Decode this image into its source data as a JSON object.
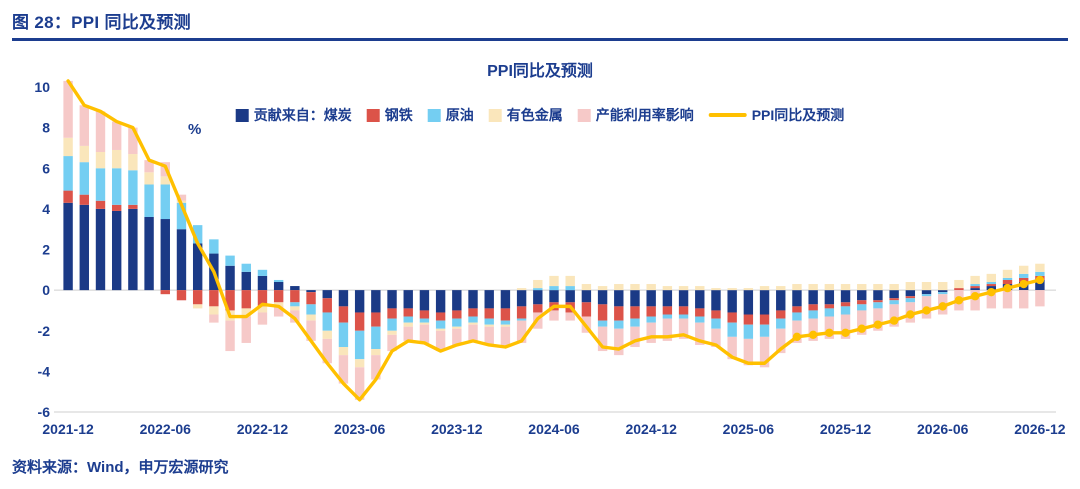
{
  "page": {
    "figure_title": "图 28：PPI 同比及预测",
    "source": "资料来源：Wind，申万宏源研究"
  },
  "chart_data": {
    "type": "bar",
    "subtype": "stacked-bar-with-line",
    "title": "PPI同比及预测",
    "unit_label": "%",
    "ylim": [
      -6,
      10
    ],
    "yticks": [
      10,
      8,
      6,
      4,
      2,
      0,
      -2,
      -4,
      -6
    ],
    "grid": "off",
    "legend_position": "top",
    "forecast_start_index": 45,
    "xtick_labels": [
      "2021-12",
      "2022-06",
      "2022-12",
      "2023-06",
      "2023-12",
      "2024-06",
      "2024-12",
      "2025-06",
      "2025-12",
      "2026-06",
      "2026-12"
    ],
    "x": [
      "2021-12",
      "2022-01",
      "2022-02",
      "2022-03",
      "2022-04",
      "2022-05",
      "2022-06",
      "2022-07",
      "2022-08",
      "2022-09",
      "2022-10",
      "2022-11",
      "2022-12",
      "2023-01",
      "2023-02",
      "2023-03",
      "2023-04",
      "2023-05",
      "2023-06",
      "2023-07",
      "2023-08",
      "2023-09",
      "2023-10",
      "2023-11",
      "2023-12",
      "2024-01",
      "2024-02",
      "2024-03",
      "2024-04",
      "2024-05",
      "2024-06",
      "2024-07",
      "2024-08",
      "2024-09",
      "2024-10",
      "2024-11",
      "2024-12",
      "2025-01",
      "2025-02",
      "2025-03",
      "2025-04",
      "2025-05",
      "2025-06",
      "2025-07",
      "2025-08",
      "2025-09",
      "2025-10",
      "2025-11",
      "2025-12",
      "2026-01",
      "2026-02",
      "2026-03",
      "2026-04",
      "2026-05",
      "2026-06",
      "2026-07",
      "2026-08",
      "2026-09",
      "2026-10",
      "2026-11",
      "2026-12"
    ],
    "series": [
      {
        "name": "贡献来自：煤炭",
        "type": "bar",
        "color": "#1b3a86",
        "values": [
          4.3,
          4.2,
          4.0,
          3.9,
          4.0,
          3.6,
          3.5,
          3.0,
          2.3,
          1.8,
          1.2,
          0.9,
          0.7,
          0.4,
          0.2,
          -0.1,
          -0.4,
          -0.8,
          -1.1,
          -1.1,
          -0.9,
          -0.9,
          -1.0,
          -1.1,
          -1.0,
          -0.9,
          -0.9,
          -0.9,
          -0.8,
          -0.7,
          -0.6,
          -0.6,
          -0.6,
          -0.7,
          -0.8,
          -0.8,
          -0.8,
          -0.8,
          -0.8,
          -0.9,
          -1.0,
          -1.1,
          -1.2,
          -1.2,
          -1.0,
          -0.8,
          -0.7,
          -0.7,
          -0.6,
          -0.5,
          -0.5,
          -0.4,
          -0.3,
          -0.2,
          -0.1,
          0.0,
          0.1,
          0.2,
          0.3,
          0.4,
          0.5
        ]
      },
      {
        "name": "钢铁",
        "type": "bar",
        "color": "#dc5349",
        "values": [
          0.6,
          0.5,
          0.4,
          0.3,
          0.2,
          0.0,
          -0.2,
          -0.5,
          -0.7,
          -0.8,
          -1.0,
          -0.9,
          -0.8,
          -0.6,
          -0.6,
          -0.6,
          -0.7,
          -0.8,
          -0.9,
          -0.7,
          -0.5,
          -0.4,
          -0.4,
          -0.4,
          -0.4,
          -0.4,
          -0.5,
          -0.6,
          -0.6,
          -0.4,
          -0.4,
          -0.5,
          -0.7,
          -0.8,
          -0.7,
          -0.6,
          -0.5,
          -0.4,
          -0.4,
          -0.4,
          -0.4,
          -0.5,
          -0.5,
          -0.5,
          -0.4,
          -0.3,
          -0.3,
          -0.2,
          -0.2,
          -0.2,
          -0.1,
          -0.1,
          -0.1,
          0.0,
          0.0,
          0.1,
          0.1,
          0.1,
          0.2,
          0.2,
          0.2
        ]
      },
      {
        "name": "原油",
        "type": "bar",
        "color": "#74cef2",
        "values": [
          1.7,
          1.6,
          1.6,
          1.8,
          1.7,
          1.6,
          1.7,
          1.3,
          0.9,
          0.7,
          0.5,
          0.4,
          0.3,
          0.1,
          -0.2,
          -0.5,
          -0.9,
          -1.2,
          -1.4,
          -1.1,
          -0.6,
          -0.3,
          -0.2,
          -0.4,
          -0.4,
          -0.3,
          -0.3,
          -0.2,
          -0.1,
          0.1,
          0.2,
          0.2,
          0.0,
          -0.3,
          -0.4,
          -0.4,
          -0.3,
          -0.2,
          -0.2,
          -0.3,
          -0.5,
          -0.7,
          -0.7,
          -0.6,
          -0.5,
          -0.4,
          -0.4,
          -0.4,
          -0.4,
          -0.3,
          -0.3,
          -0.2,
          -0.2,
          -0.1,
          -0.1,
          0.0,
          0.1,
          0.1,
          0.1,
          0.2,
          0.2
        ]
      },
      {
        "name": "有色金属",
        "type": "bar",
        "color": "#fae6bb",
        "values": [
          0.9,
          0.8,
          0.8,
          0.9,
          0.8,
          0.6,
          0.4,
          0.1,
          -0.2,
          -0.4,
          -0.5,
          -0.4,
          -0.3,
          -0.2,
          -0.2,
          -0.3,
          -0.4,
          -0.4,
          -0.4,
          -0.3,
          -0.2,
          -0.2,
          -0.1,
          -0.1,
          -0.1,
          -0.1,
          -0.1,
          -0.1,
          0.1,
          0.4,
          0.5,
          0.5,
          0.3,
          0.2,
          0.3,
          0.3,
          0.3,
          0.2,
          0.2,
          0.2,
          0.1,
          0.1,
          0.1,
          0.2,
          0.2,
          0.3,
          0.3,
          0.3,
          0.3,
          0.3,
          0.3,
          0.3,
          0.4,
          0.4,
          0.4,
          0.4,
          0.4,
          0.4,
          0.4,
          0.4,
          0.4
        ]
      },
      {
        "name": "产能利用率影响",
        "type": "bar",
        "color": "#f6c9c8",
        "values": [
          2.8,
          2.0,
          2.0,
          1.4,
          1.3,
          0.6,
          0.7,
          0.3,
          0.0,
          -0.4,
          -1.5,
          -1.3,
          -0.6,
          -0.5,
          -0.6,
          -1.0,
          -1.2,
          -1.4,
          -1.6,
          -1.2,
          -0.8,
          -0.7,
          -0.9,
          -1.0,
          -0.8,
          -0.8,
          -0.9,
          -1.0,
          -1.1,
          -0.8,
          -0.5,
          -0.4,
          -0.8,
          -1.2,
          -1.3,
          -1.0,
          -1.0,
          -1.1,
          -1.0,
          -1.1,
          -0.9,
          -1.1,
          -1.3,
          -1.5,
          -1.2,
          -1.1,
          -1.1,
          -1.1,
          -1.2,
          -1.2,
          -1.1,
          -1.1,
          -1.0,
          -1.1,
          -1.0,
          -1.0,
          -1.0,
          -0.9,
          -0.9,
          -0.9,
          -0.8
        ]
      },
      {
        "name": "PPI同比及预测",
        "type": "line",
        "color": "#ffc000",
        "values": [
          10.3,
          9.1,
          8.8,
          8.3,
          8.0,
          6.4,
          6.1,
          4.2,
          2.3,
          0.9,
          -1.3,
          -1.3,
          -0.7,
          -0.8,
          -1.4,
          -2.5,
          -3.6,
          -4.6,
          -5.4,
          -4.4,
          -3.0,
          -2.5,
          -2.6,
          -3.0,
          -2.7,
          -2.5,
          -2.7,
          -2.8,
          -2.5,
          -1.4,
          -0.8,
          -0.8,
          -1.8,
          -2.8,
          -2.9,
          -2.5,
          -2.3,
          -2.3,
          -2.2,
          -2.5,
          -2.7,
          -3.3,
          -3.6,
          -3.6,
          -2.9,
          -2.3,
          -2.2,
          -2.1,
          -2.1,
          -1.9,
          -1.7,
          -1.5,
          -1.2,
          -1.0,
          -0.8,
          -0.5,
          -0.3,
          -0.1,
          0.1,
          0.3,
          0.5
        ]
      }
    ]
  }
}
